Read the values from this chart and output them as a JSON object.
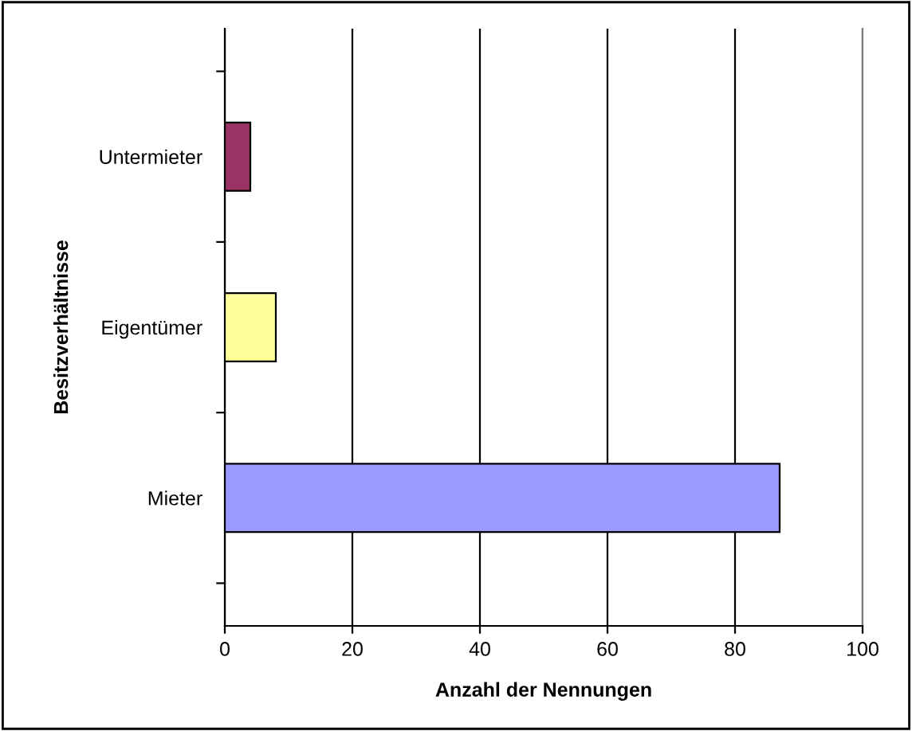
{
  "chart_data": {
    "type": "bar",
    "orientation": "horizontal",
    "categories": [
      "Untermieter",
      "Eigentümer",
      "Mieter"
    ],
    "values": [
      4,
      8,
      87
    ],
    "colors": [
      "#993366",
      "#ffff99",
      "#9999ff"
    ],
    "xlabel": "Anzahl der Nennungen",
    "ylabel": "Besitzverhältnisse",
    "xlim": [
      0,
      100
    ],
    "xticks": [
      0,
      20,
      40,
      60,
      80,
      100
    ],
    "grid": "x"
  }
}
